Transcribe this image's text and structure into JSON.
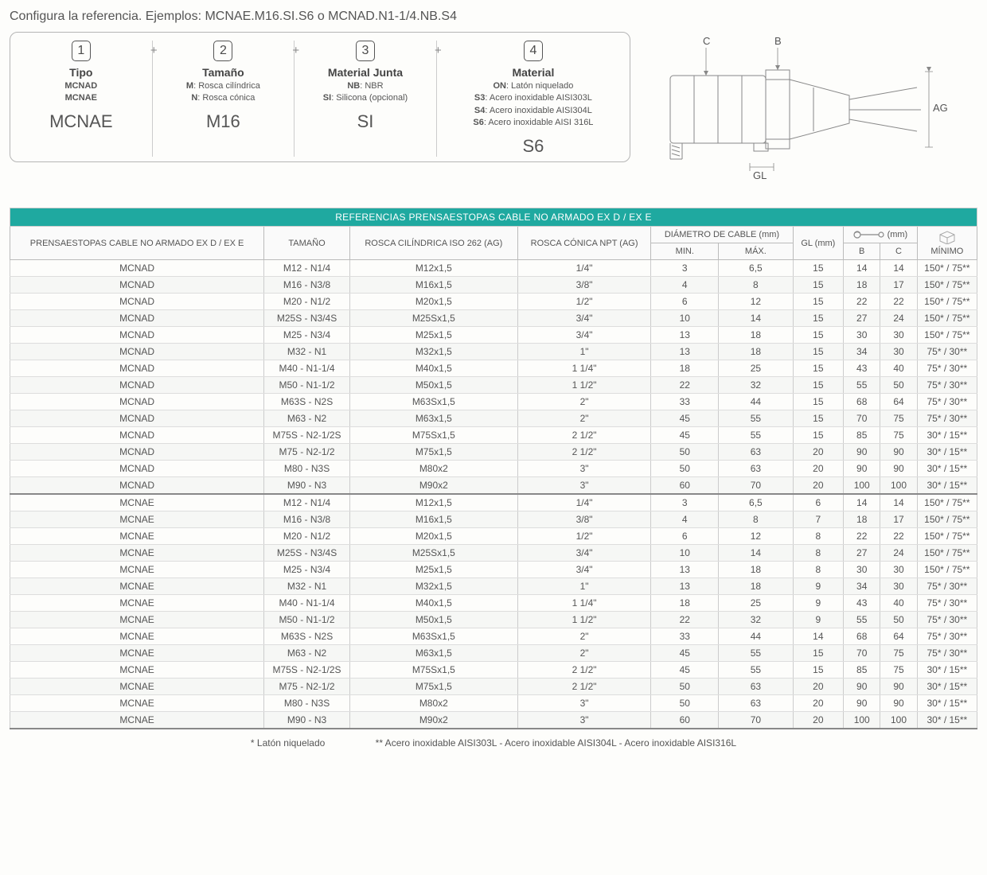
{
  "intro": "Configura la referencia. Ejemplos: MCNAE.M16.SI.S6 o MCNAD.N1-1/4.NB.S4",
  "config": {
    "cols": [
      {
        "num": "1",
        "title": "Tipo",
        "lines": [
          "<b>MCNAD</b>",
          "<b>MCNAE</b>"
        ],
        "example": "MCNAE"
      },
      {
        "num": "2",
        "title": "Tamaño",
        "lines": [
          "<b>M</b>: Rosca cilíndrica",
          "<b>N</b>: Rosca cónica"
        ],
        "example": "M16"
      },
      {
        "num": "3",
        "title": "Material Junta",
        "lines": [
          "<b>NB</b>: NBR",
          "<b>SI</b>: Silicona (opcional)"
        ],
        "example": "SI"
      },
      {
        "num": "4",
        "title": "Material",
        "lines": [
          "<b>ON</b>: Latón niquelado",
          "<b>S3</b>: Acero inoxidable AISI303L",
          "<b>S4</b>: Acero inoxidable AISI304L",
          "<b>S6</b>: Acero inoxidable AISI 316L"
        ],
        "example": "S6"
      }
    ]
  },
  "diagram_labels": {
    "C": "C",
    "B": "B",
    "AG": "AG",
    "GL": "GL"
  },
  "table": {
    "title": "REFERENCIAS PRENSAESTOPAS CABLE NO ARMADO EX D / EX E",
    "headers": {
      "col1": "PRENSAESTOPAS CABLE NO ARMADO EX D / EX E",
      "col2": "TAMAÑO",
      "col3": "ROSCA CILÍNDRICA ISO 262 (AG)",
      "col4": "ROSCA CÓNICA NPT (AG)",
      "diam": "DIÁMETRO DE CABLE (mm)",
      "min": "MIN.",
      "max": "MÁX.",
      "gl": "GL (mm)",
      "wrench": "(mm)",
      "B": "B",
      "C": "C",
      "minimo": "MÍNIMO"
    },
    "groups": [
      [
        [
          "MCNAD",
          "M12 - N1/4",
          "M12x1,5",
          "1/4\"",
          "3",
          "6,5",
          "15",
          "14",
          "14",
          "150* / 75**"
        ],
        [
          "MCNAD",
          "M16 - N3/8",
          "M16x1,5",
          "3/8\"",
          "4",
          "8",
          "15",
          "18",
          "17",
          "150* / 75**"
        ],
        [
          "MCNAD",
          "M20 - N1/2",
          "M20x1,5",
          "1/2\"",
          "6",
          "12",
          "15",
          "22",
          "22",
          "150* / 75**"
        ],
        [
          "MCNAD",
          "M25S - N3/4S",
          "M25Sx1,5",
          "3/4\"",
          "10",
          "14",
          "15",
          "27",
          "24",
          "150* / 75**"
        ],
        [
          "MCNAD",
          "M25 - N3/4",
          "M25x1,5",
          "3/4\"",
          "13",
          "18",
          "15",
          "30",
          "30",
          "150* / 75**"
        ],
        [
          "MCNAD",
          "M32 - N1",
          "M32x1,5",
          "1\"",
          "13",
          "18",
          "15",
          "34",
          "30",
          "75* / 30**"
        ],
        [
          "MCNAD",
          "M40 - N1-1/4",
          "M40x1,5",
          "1 1/4\"",
          "18",
          "25",
          "15",
          "43",
          "40",
          "75* / 30**"
        ],
        [
          "MCNAD",
          "M50 - N1-1/2",
          "M50x1,5",
          "1 1/2\"",
          "22",
          "32",
          "15",
          "55",
          "50",
          "75* / 30**"
        ],
        [
          "MCNAD",
          "M63S - N2S",
          "M63Sx1,5",
          "2\"",
          "33",
          "44",
          "15",
          "68",
          "64",
          "75* / 30**"
        ],
        [
          "MCNAD",
          "M63 - N2",
          "M63x1,5",
          "2\"",
          "45",
          "55",
          "15",
          "70",
          "75",
          "75* / 30**"
        ],
        [
          "MCNAD",
          "M75S - N2-1/2S",
          "M75Sx1,5",
          "2 1/2\"",
          "45",
          "55",
          "15",
          "85",
          "75",
          "30* / 15**"
        ],
        [
          "MCNAD",
          "M75 - N2-1/2",
          "M75x1,5",
          "2 1/2\"",
          "50",
          "63",
          "20",
          "90",
          "90",
          "30* / 15**"
        ],
        [
          "MCNAD",
          "M80 - N3S",
          "M80x2",
          "3\"",
          "50",
          "63",
          "20",
          "90",
          "90",
          "30* / 15**"
        ],
        [
          "MCNAD",
          "M90 - N3",
          "M90x2",
          "3\"",
          "60",
          "70",
          "20",
          "100",
          "100",
          "30* / 15**"
        ]
      ],
      [
        [
          "MCNAE",
          "M12 - N1/4",
          "M12x1,5",
          "1/4\"",
          "3",
          "6,5",
          "6",
          "14",
          "14",
          "150* / 75**"
        ],
        [
          "MCNAE",
          "M16 - N3/8",
          "M16x1,5",
          "3/8\"",
          "4",
          "8",
          "7",
          "18",
          "17",
          "150* / 75**"
        ],
        [
          "MCNAE",
          "M20 - N1/2",
          "M20x1,5",
          "1/2\"",
          "6",
          "12",
          "8",
          "22",
          "22",
          "150* / 75**"
        ],
        [
          "MCNAE",
          "M25S - N3/4S",
          "M25Sx1,5",
          "3/4\"",
          "10",
          "14",
          "8",
          "27",
          "24",
          "150* / 75**"
        ],
        [
          "MCNAE",
          "M25 - N3/4",
          "M25x1,5",
          "3/4\"",
          "13",
          "18",
          "8",
          "30",
          "30",
          "150* / 75**"
        ],
        [
          "MCNAE",
          "M32 - N1",
          "M32x1,5",
          "1\"",
          "13",
          "18",
          "9",
          "34",
          "30",
          "75* / 30**"
        ],
        [
          "MCNAE",
          "M40 - N1-1/4",
          "M40x1,5",
          "1 1/4\"",
          "18",
          "25",
          "9",
          "43",
          "40",
          "75* / 30**"
        ],
        [
          "MCNAE",
          "M50 - N1-1/2",
          "M50x1,5",
          "1 1/2\"",
          "22",
          "32",
          "9",
          "55",
          "50",
          "75* / 30**"
        ],
        [
          "MCNAE",
          "M63S - N2S",
          "M63Sx1,5",
          "2\"",
          "33",
          "44",
          "14",
          "68",
          "64",
          "75* / 30**"
        ],
        [
          "MCNAE",
          "M63 - N2",
          "M63x1,5",
          "2\"",
          "45",
          "55",
          "15",
          "70",
          "75",
          "75* / 30**"
        ],
        [
          "MCNAE",
          "M75S - N2-1/2S",
          "M75Sx1,5",
          "2 1/2\"",
          "45",
          "55",
          "15",
          "85",
          "75",
          "30* / 15**"
        ],
        [
          "MCNAE",
          "M75 - N2-1/2",
          "M75x1,5",
          "2 1/2\"",
          "50",
          "63",
          "20",
          "90",
          "90",
          "30* / 15**"
        ],
        [
          "MCNAE",
          "M80 - N3S",
          "M80x2",
          "3\"",
          "50",
          "63",
          "20",
          "90",
          "90",
          "30* / 15**"
        ],
        [
          "MCNAE",
          "M90 - N3",
          "M90x2",
          "3\"",
          "60",
          "70",
          "20",
          "100",
          "100",
          "30* / 15**"
        ]
      ]
    ]
  },
  "footnote": {
    "a": "* Latón niquelado",
    "b": "** Acero inoxidable AISI303L - Acero inoxidable AISI304L - Acero inoxidable AISI316L"
  },
  "colors": {
    "teal": "#1fa9a0",
    "border": "#bbbbbb",
    "text": "#555555"
  }
}
